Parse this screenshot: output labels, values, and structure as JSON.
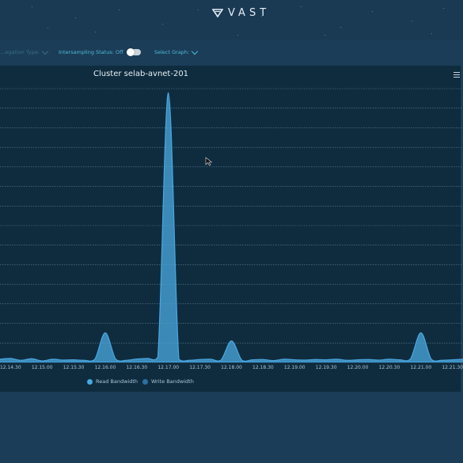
{
  "header": {
    "logo_text": "VAST",
    "logo_icon": "vast-v-icon"
  },
  "controls": {
    "aggregation_label": "...egation Type:",
    "intersampling_label": "Intersampling Status: Off",
    "intersampling_on": false,
    "select_graph_label": "Select Graph:"
  },
  "chart_data": {
    "type": "area",
    "title": "Cluster selab-avnet-201",
    "x_ticks": [
      "12.14.30",
      "12.15.00",
      "12.15.30",
      "12.16.00",
      "12.16.30",
      "12.17.00",
      "12.17.30",
      "12.18.00",
      "12.18.30",
      "12.19.00",
      "12.19.30",
      "12.20.00",
      "12.20.30",
      "12.21.00",
      "12.21.30"
    ],
    "xlim": [
      "12.14.20",
      "12.21.40"
    ],
    "ylim": [
      0,
      100
    ],
    "grid": true,
    "legend_position": "bottom",
    "series": [
      {
        "name": "Read Bandwidth",
        "color": "#4aa8e0",
        "x": [
          "12.14.20",
          "12.14.30",
          "12.14.40",
          "12.14.50",
          "12.15.00",
          "12.15.10",
          "12.15.20",
          "12.15.30",
          "12.15.40",
          "12.15.50",
          "12.16.00",
          "12.16.10",
          "12.16.20",
          "12.16.30",
          "12.16.40",
          "12.16.50",
          "12.17.00",
          "12.17.10",
          "12.17.20",
          "12.17.30",
          "12.17.40",
          "12.17.50",
          "12.18.00",
          "12.18.10",
          "12.18.20",
          "12.18.30",
          "12.18.40",
          "12.18.50",
          "12.19.00",
          "12.19.10",
          "12.19.20",
          "12.19.30",
          "12.19.40",
          "12.19.50",
          "12.20.00",
          "12.20.10",
          "12.20.20",
          "12.20.30",
          "12.20.40",
          "12.20.50",
          "12.21.00",
          "12.21.10",
          "12.21.20",
          "12.21.30",
          "12.21.40"
        ],
        "values": [
          1.2,
          1.5,
          0.8,
          1.4,
          0.6,
          1.2,
          0.9,
          1.0,
          0.8,
          1.1,
          11,
          1.2,
          0.8,
          1.3,
          1.5,
          2,
          100,
          1.2,
          0.8,
          1.1,
          1.2,
          0.9,
          8,
          0.8,
          1.0,
          1.1,
          0.7,
          1.2,
          1.0,
          0.9,
          1.1,
          1.0,
          1.2,
          0.8,
          1.0,
          1.1,
          0.9,
          1.2,
          1.0,
          1.3,
          11,
          1.1,
          0.8,
          1.0,
          1.2
        ]
      },
      {
        "name": "Write Bandwidth",
        "color": "#2d6f9e",
        "x": [
          "12.14.20",
          "12.15.00",
          "12.15.40",
          "12.16.20",
          "12.17.00",
          "12.17.40",
          "12.18.20",
          "12.19.00",
          "12.19.40",
          "12.20.20",
          "12.21.00",
          "12.21.40"
        ],
        "values": [
          0.3,
          0.2,
          0.3,
          0.2,
          0.3,
          0.2,
          0.3,
          0.2,
          0.3,
          0.2,
          0.3,
          0.2
        ]
      }
    ]
  }
}
